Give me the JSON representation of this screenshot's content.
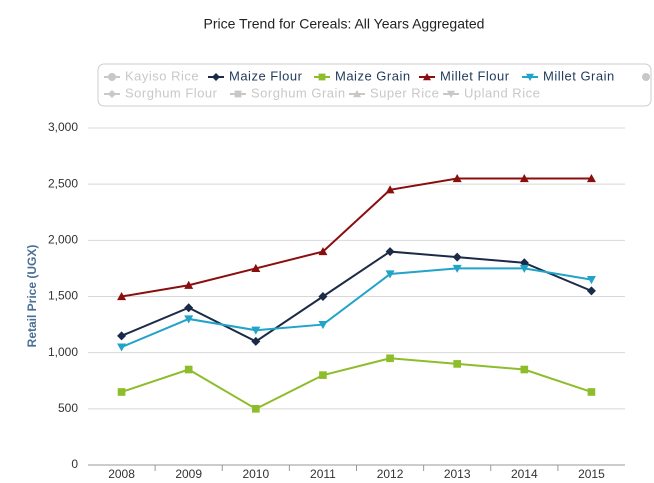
{
  "chart_data": {
    "type": "line",
    "title": "Price Trend for Cereals: All Years Aggregated",
    "y_label": "Retail Price (UGX)",
    "categories": [
      "2008",
      "2009",
      "2010",
      "2011",
      "2012",
      "2013",
      "2014",
      "2015"
    ],
    "series": [
      {
        "name": "Maize Flour",
        "color": "#1b2b47",
        "marker": "diamond",
        "values": [
          1150,
          1400,
          1100,
          1500,
          1900,
          1850,
          1800,
          1550
        ]
      },
      {
        "name": "Maize Grain",
        "color": "#8dbd2a",
        "marker": "square",
        "values": [
          650,
          850,
          500,
          800,
          950,
          900,
          850,
          650
        ]
      },
      {
        "name": "Millet Flour",
        "color": "#8b0e0e",
        "marker": "triangle",
        "values": [
          1500,
          1600,
          1750,
          1900,
          2450,
          2550,
          2550,
          2550
        ]
      },
      {
        "name": "Millet Grain",
        "color": "#22a3c9",
        "marker": "triangle-down",
        "values": [
          1050,
          1300,
          1200,
          1250,
          1700,
          1750,
          1750,
          1650
        ]
      }
    ],
    "inactive_legend": [
      {
        "name": "Kayiso Rice",
        "marker": "circle"
      },
      {
        "name": "Sorghum Flour",
        "marker": "diamond"
      },
      {
        "name": "Sorghum Grain",
        "marker": "square"
      },
      {
        "name": "Super Rice",
        "marker": "triangle"
      },
      {
        "name": "Upland Rice",
        "marker": "triangle-down"
      }
    ],
    "ylim": [
      0,
      3000
    ],
    "yticks": [
      0,
      500,
      {
        "value": 1000,
        "label": "1,000"
      },
      {
        "value": 1500,
        "label": "1,500"
      },
      {
        "value": 2000,
        "label": "2,000"
      },
      {
        "value": 2500,
        "label": "2,500"
      },
      {
        "value": 3000,
        "label": "3,000"
      }
    ],
    "grid": true
  }
}
